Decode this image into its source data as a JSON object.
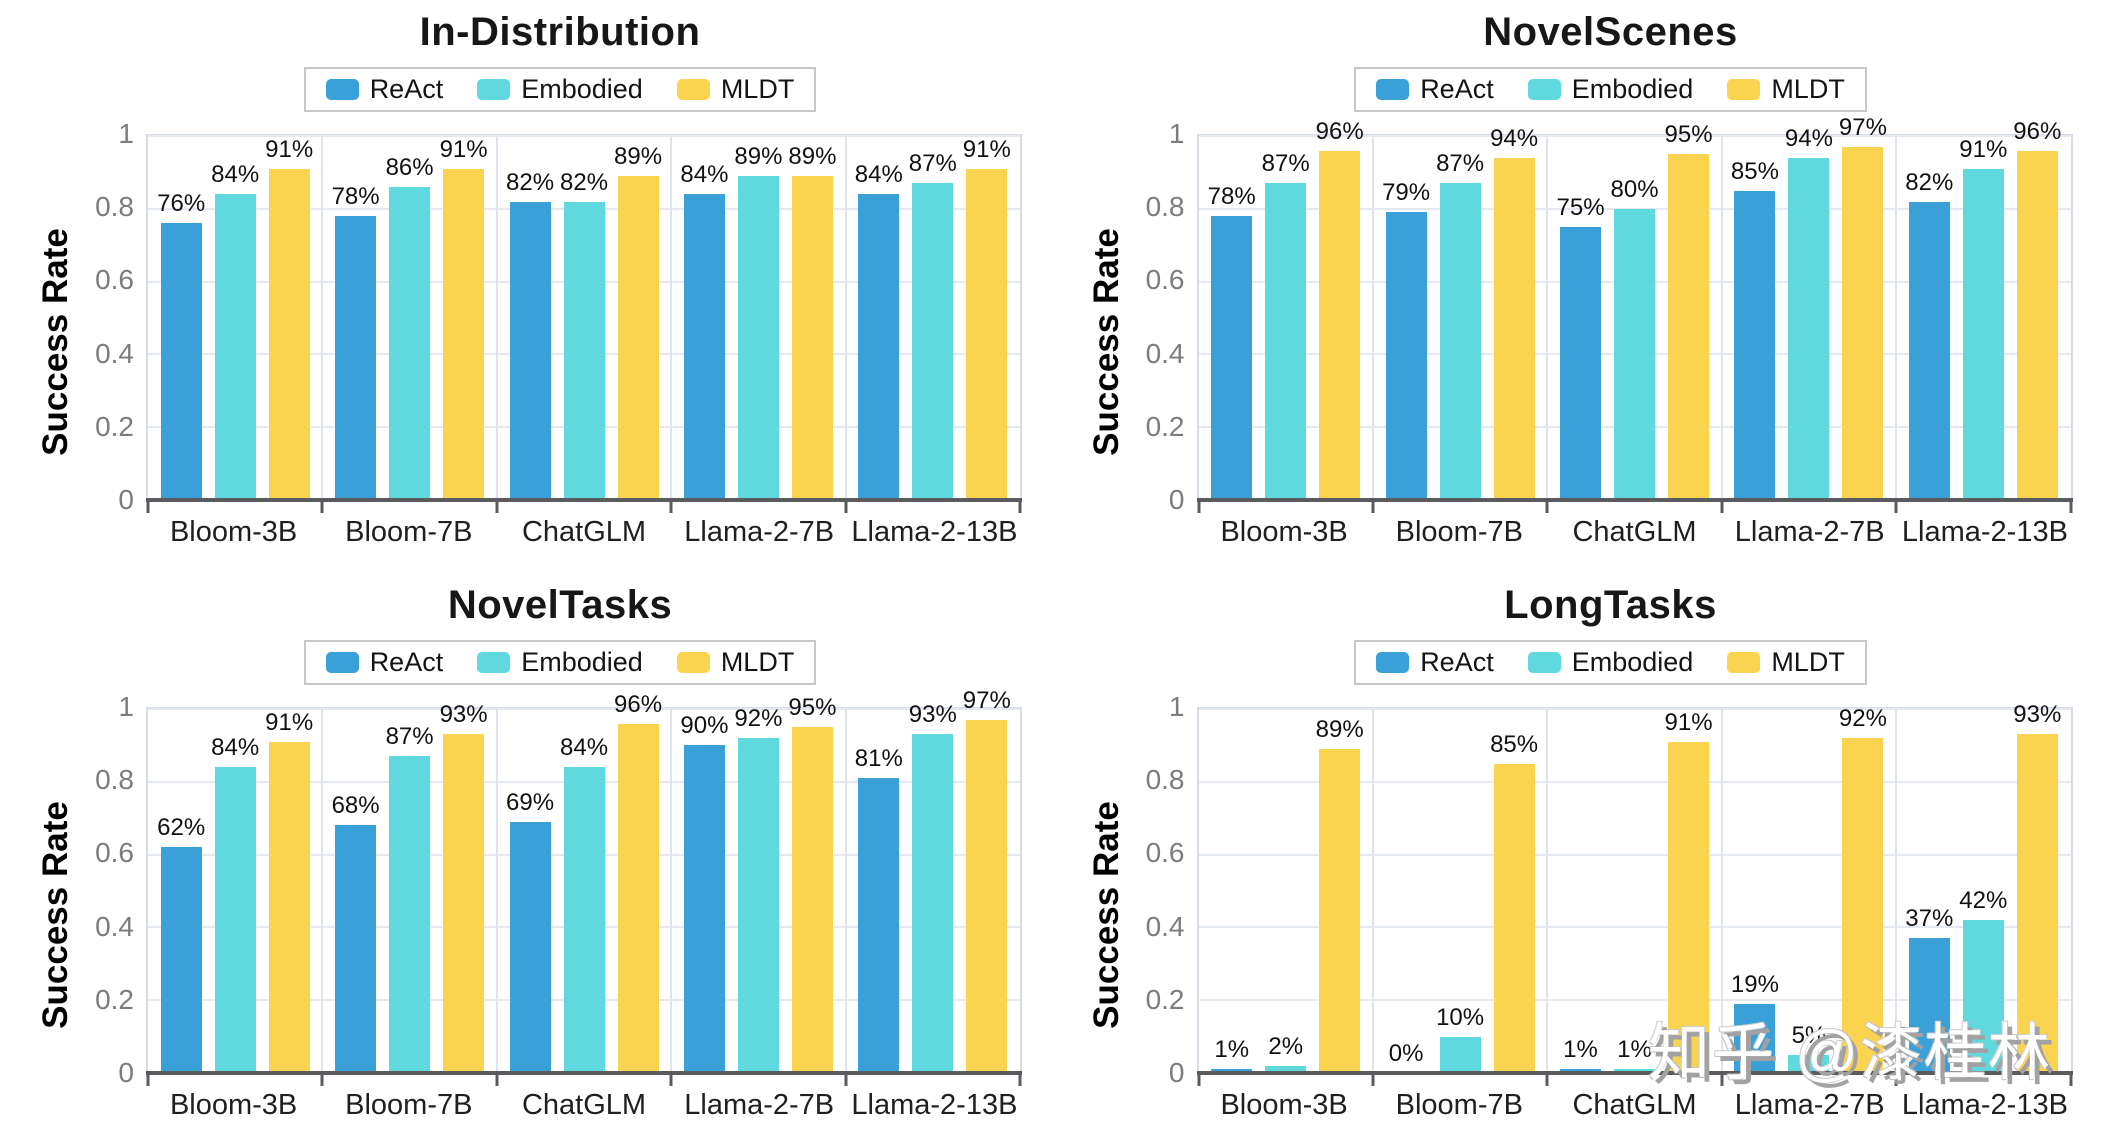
{
  "watermark": {
    "text": "知乎 @漆桂林"
  },
  "colors": {
    "ReAct": "#3aa0d8",
    "Embodied": "#5fd8de",
    "MLDT": "#fbd44f",
    "grid": "#e4e8f1",
    "baseline": "#595b5e",
    "tick_label": "#7c7c7c"
  },
  "legend": {
    "items": [
      "ReAct",
      "Embodied",
      "MLDT"
    ]
  },
  "axis": {
    "ylabel": "Success Rate",
    "ytick_labels": [
      "1",
      "0.8",
      "0.6",
      "0.4",
      "0.2",
      "0"
    ],
    "ytick_values": [
      1.0,
      0.8,
      0.6,
      0.4,
      0.2,
      0.0
    ]
  },
  "chart_data": [
    {
      "type": "bar",
      "title": "In-Distribution",
      "xlabel": "",
      "ylabel": "Success Rate",
      "ylim": [
        0,
        1
      ],
      "grid": true,
      "legend_position": "top",
      "values_unit": "percent",
      "categories": [
        "Bloom-3B",
        "Bloom-7B",
        "ChatGLM",
        "Llama-2-7B",
        "Llama-2-13B"
      ],
      "series": [
        {
          "name": "ReAct",
          "values": [
            76,
            78,
            82,
            84,
            84
          ]
        },
        {
          "name": "Embodied",
          "values": [
            84,
            86,
            82,
            89,
            87
          ]
        },
        {
          "name": "MLDT",
          "values": [
            91,
            91,
            89,
            89,
            91
          ]
        }
      ]
    },
    {
      "type": "bar",
      "title": "NovelScenes",
      "xlabel": "",
      "ylabel": "Success Rate",
      "ylim": [
        0,
        1
      ],
      "grid": true,
      "legend_position": "top",
      "values_unit": "percent",
      "categories": [
        "Bloom-3B",
        "Bloom-7B",
        "ChatGLM",
        "Llama-2-7B",
        "Llama-2-13B"
      ],
      "series": [
        {
          "name": "ReAct",
          "values": [
            78,
            79,
            75,
            85,
            82
          ]
        },
        {
          "name": "Embodied",
          "values": [
            87,
            87,
            80,
            94,
            91
          ]
        },
        {
          "name": "MLDT",
          "values": [
            96,
            94,
            95,
            97,
            96
          ]
        }
      ]
    },
    {
      "type": "bar",
      "title": "NovelTasks",
      "xlabel": "",
      "ylabel": "Success Rate",
      "ylim": [
        0,
        1
      ],
      "grid": true,
      "legend_position": "top",
      "values_unit": "percent",
      "categories": [
        "Bloom-3B",
        "Bloom-7B",
        "ChatGLM",
        "Llama-2-7B",
        "Llama-2-13B"
      ],
      "series": [
        {
          "name": "ReAct",
          "values": [
            62,
            68,
            69,
            90,
            81
          ]
        },
        {
          "name": "Embodied",
          "values": [
            84,
            87,
            84,
            92,
            93
          ]
        },
        {
          "name": "MLDT",
          "values": [
            91,
            93,
            96,
            95,
            97
          ]
        }
      ]
    },
    {
      "type": "bar",
      "title": "LongTasks",
      "xlabel": "",
      "ylabel": "Success Rate",
      "ylim": [
        0,
        1
      ],
      "grid": true,
      "legend_position": "top",
      "values_unit": "percent",
      "categories": [
        "Bloom-3B",
        "Bloom-7B",
        "ChatGLM",
        "Llama-2-7B",
        "Llama-2-13B"
      ],
      "series": [
        {
          "name": "ReAct",
          "values": [
            1,
            0,
            1,
            19,
            37
          ]
        },
        {
          "name": "Embodied",
          "values": [
            2,
            10,
            1,
            5,
            42
          ]
        },
        {
          "name": "MLDT",
          "values": [
            89,
            85,
            91,
            92,
            93
          ]
        }
      ]
    }
  ]
}
